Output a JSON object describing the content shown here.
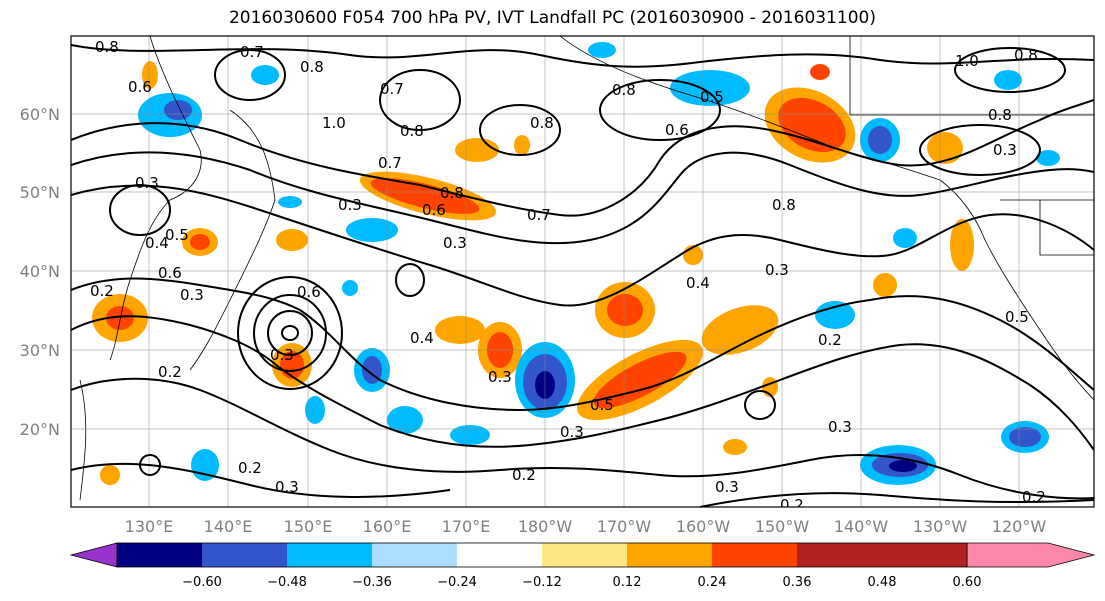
{
  "title": "2016030600 F054 700 hPa PV, IVT Landfall PC (2016030900 - 2016031100)",
  "map": {
    "lat_labels": [
      "60°N",
      "50°N",
      "40°N",
      "30°N",
      "20°N"
    ],
    "lon_labels": [
      "130°E",
      "140°E",
      "150°E",
      "160°E",
      "170°E",
      "180°W",
      "170°W",
      "160°W",
      "150°W",
      "140°W",
      "130°W",
      "120°W"
    ],
    "contour_labels": [
      "0.8",
      "0.7",
      "0.8",
      "0.6",
      "1.0",
      "0.7",
      "0.8",
      "0.8",
      "0.8",
      "0.5",
      "0.6",
      "1.0",
      "0.8",
      "0.8",
      "0.3",
      "0.3",
      "0.7",
      "0.6",
      "0.8",
      "0.3",
      "0.7",
      "0.8",
      "0.3",
      "0.4",
      "0.5",
      "0.6",
      "0.4",
      "0.3",
      "0.2",
      "0.6",
      "0.3",
      "0.4",
      "0.5",
      "0.2",
      "0.3",
      "0.2",
      "0.3",
      "0.3",
      "0.2",
      "0.3",
      "0.2",
      "0.3",
      "0.2",
      "0.3",
      "0.5",
      "0.2"
    ]
  },
  "colorbar": {
    "colors": [
      "#9933cc",
      "#000080",
      "#3355cc",
      "#00bbff",
      "#aaddff",
      "#ffffff",
      "#ffe680",
      "#ffa500",
      "#ff4400",
      "#b22222",
      "#ff88aa"
    ],
    "ticks": [
      "−0.60",
      "−0.48",
      "−0.36",
      "−0.24",
      "−0.12",
      "0.12",
      "0.24",
      "0.36",
      "0.48",
      "0.60"
    ]
  }
}
